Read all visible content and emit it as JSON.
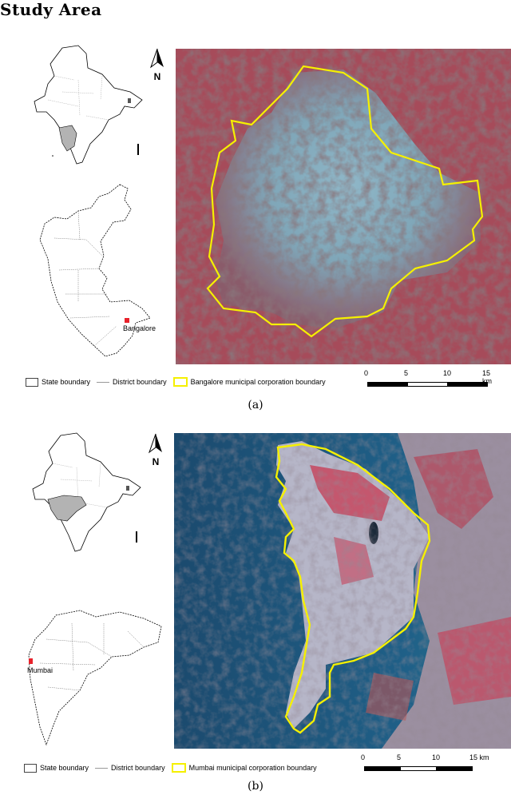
{
  "page": {
    "heading": "Study Area"
  },
  "panels": [
    {
      "id": "a",
      "caption": "(a)",
      "north_label": "N",
      "city_label": "Bangalore",
      "legend": [
        {
          "label": "State boundary",
          "symbol": "box-gray"
        },
        {
          "label": "District boundary",
          "symbol": "thin-line"
        },
        {
          "label": "Bangalore municipal corporation boundary",
          "symbol": "box-yellow"
        }
      ],
      "scale": {
        "ticks": [
          "0",
          "5",
          "10",
          "15 km"
        ]
      },
      "colors": {
        "boundary": "#f5f000",
        "highlight_state": "#b3b3b3",
        "city_marker": "#e8222b",
        "urban": "#7fa6b8",
        "vegetation": "#9c3c4c"
      }
    },
    {
      "id": "b",
      "caption": "(b)",
      "north_label": "N",
      "city_label": "Mumbai",
      "legend": [
        {
          "label": "State boundary",
          "symbol": "box-gray"
        },
        {
          "label": "District boundary",
          "symbol": "thin-line"
        },
        {
          "label": "Mumbai municipal corporation boundary",
          "symbol": "box-yellow"
        }
      ],
      "scale": {
        "ticks": [
          "0",
          "5",
          "10",
          "15 km"
        ]
      },
      "colors": {
        "boundary": "#f5f000",
        "highlight_state": "#b3b3b3",
        "city_marker": "#e8222b",
        "sea": "#1f5a80",
        "urban": "#b6b6c8",
        "vegetation": "#c84058"
      }
    }
  ]
}
